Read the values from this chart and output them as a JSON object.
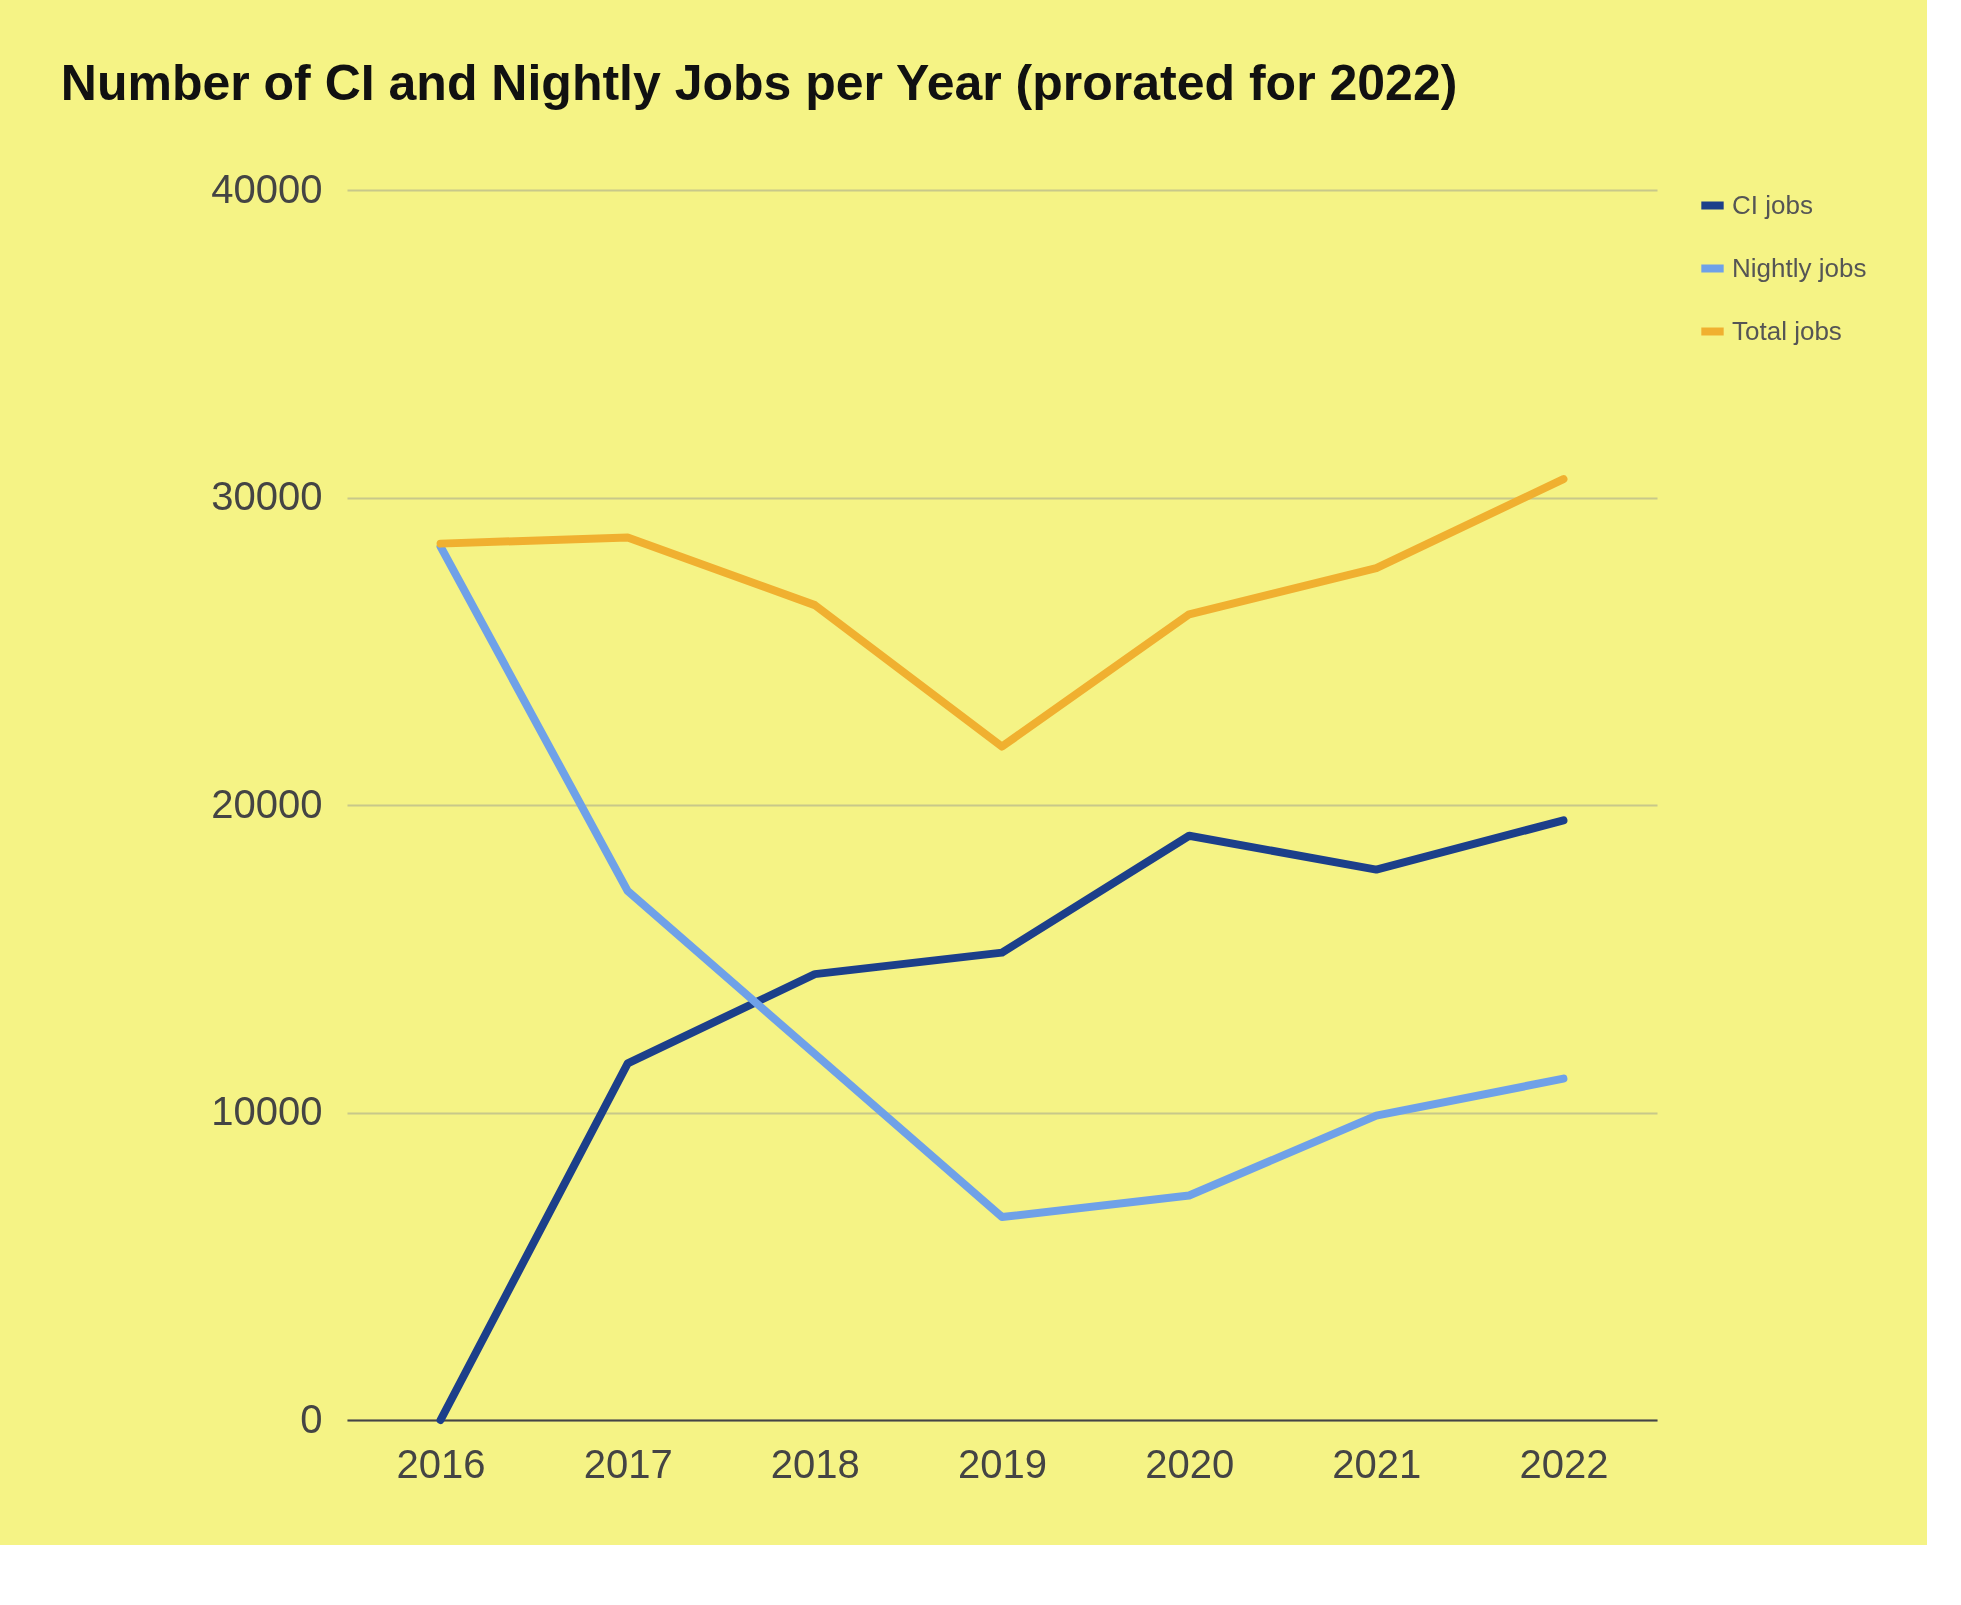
{
  "chart_data": {
    "type": "line",
    "title": "Number of CI and Nightly Jobs per Year (prorated for 2022)",
    "categories": [
      "2016",
      "2017",
      "2018",
      "2019",
      "2020",
      "2021",
      "2022"
    ],
    "series": [
      {
        "name": "CI jobs",
        "color": "#1c3f8a",
        "values": [
          0,
          11600,
          14500,
          15200,
          19000,
          17900,
          19500
        ]
      },
      {
        "name": "Nightly jobs",
        "color": "#6fa1e8",
        "values": [
          28400,
          17200,
          11900,
          6600,
          7300,
          9900,
          11100
        ]
      },
      {
        "name": "Total jobs",
        "color": "#f0b030",
        "values": [
          28500,
          28700,
          26500,
          21900,
          26200,
          27700,
          30600
        ]
      }
    ],
    "ylim": [
      0,
      40000
    ],
    "yticks": [
      0,
      10000,
      20000,
      30000,
      40000
    ],
    "grid": "y",
    "legend": "top right",
    "marker": "none",
    "line_style": "solid"
  }
}
